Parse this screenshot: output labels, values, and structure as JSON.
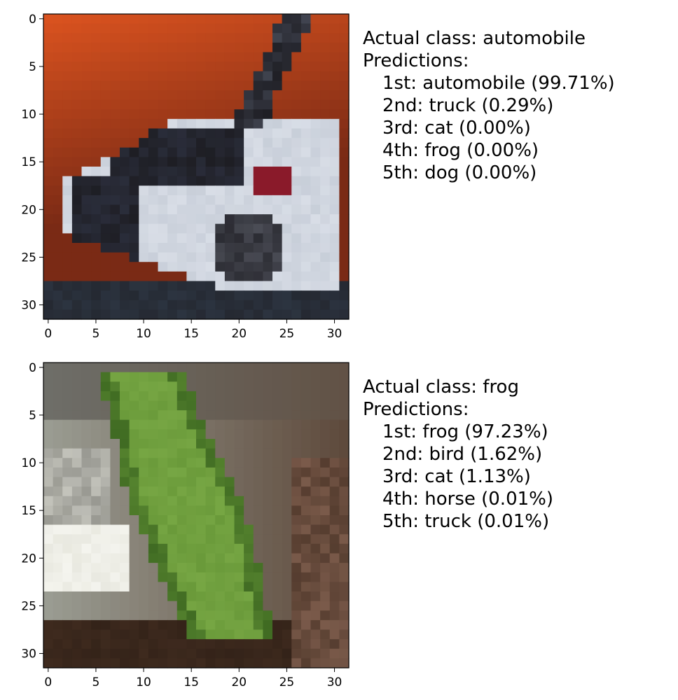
{
  "chart_data": [
    {
      "type": "image",
      "actual_label": "Actual class: automobile",
      "predictions_label": "Predictions:",
      "predictions": [
        {
          "rank": "1st",
          "class": "automobile",
          "prob": "99.71%",
          "text": "1st: automobile (99.71%)"
        },
        {
          "rank": "2nd",
          "class": "truck",
          "prob": "0.29%",
          "text": "2nd: truck (0.29%)"
        },
        {
          "rank": "3rd",
          "class": "cat",
          "prob": "0.00%",
          "text": "3rd: cat (0.00%)"
        },
        {
          "rank": "4th",
          "class": "frog",
          "prob": "0.00%",
          "text": "4th: frog (0.00%)"
        },
        {
          "rank": "5th",
          "class": "dog",
          "prob": "0.00%",
          "text": "5th: dog (0.00%)"
        }
      ],
      "xticks": [
        "0",
        "5",
        "10",
        "15",
        "20",
        "25",
        "30"
      ],
      "yticks": [
        "0",
        "5",
        "10",
        "15",
        "20",
        "25",
        "30"
      ],
      "xlim": [
        -0.5,
        31.5
      ],
      "ylim": [
        31.5,
        -0.5
      ],
      "image_size": [
        32,
        32
      ],
      "image_desc": "car",
      "colors": {
        "bg_top": "#d9521f",
        "bg_bottom": "#7a2a15",
        "body": "#d8dde6",
        "dark": "#1e1e24",
        "window": "#2a2d3a",
        "wheel": "#4a4c55",
        "ground": "#2c3440",
        "light": "#8a1a2a"
      }
    },
    {
      "type": "image",
      "actual_label": "Actual class: frog",
      "predictions_label": "Predictions:",
      "predictions": [
        {
          "rank": "1st",
          "class": "frog",
          "prob": "97.23%",
          "text": "1st: frog (97.23%)"
        },
        {
          "rank": "2nd",
          "class": "bird",
          "prob": "1.62%",
          "text": "2nd: bird (1.62%)"
        },
        {
          "rank": "3rd",
          "class": "cat",
          "prob": "1.13%",
          "text": "3rd: cat (1.13%)"
        },
        {
          "rank": "4th",
          "class": "horse",
          "prob": "0.01%",
          "text": "4th: horse (0.01%)"
        },
        {
          "rank": "5th",
          "class": "truck",
          "prob": "0.01%",
          "text": "5th: truck (0.01%)"
        }
      ],
      "xticks": [
        "0",
        "5",
        "10",
        "15",
        "20",
        "25",
        "30"
      ],
      "yticks": [
        "0",
        "5",
        "10",
        "15",
        "20",
        "25",
        "30"
      ],
      "xlim": [
        -0.5,
        31.5
      ],
      "ylim": [
        31.5,
        -0.5
      ],
      "image_size": [
        32,
        32
      ],
      "image_desc": "frog",
      "colors": {
        "bg_left": "#9a9c92",
        "bg_right": "#5e4a3c",
        "frog": "#6a9a3a",
        "frog_dark": "#3f6a22",
        "highlight": "#f4f4ee",
        "ground": "#3e2a1e",
        "grey": "#6e6e68"
      }
    }
  ]
}
